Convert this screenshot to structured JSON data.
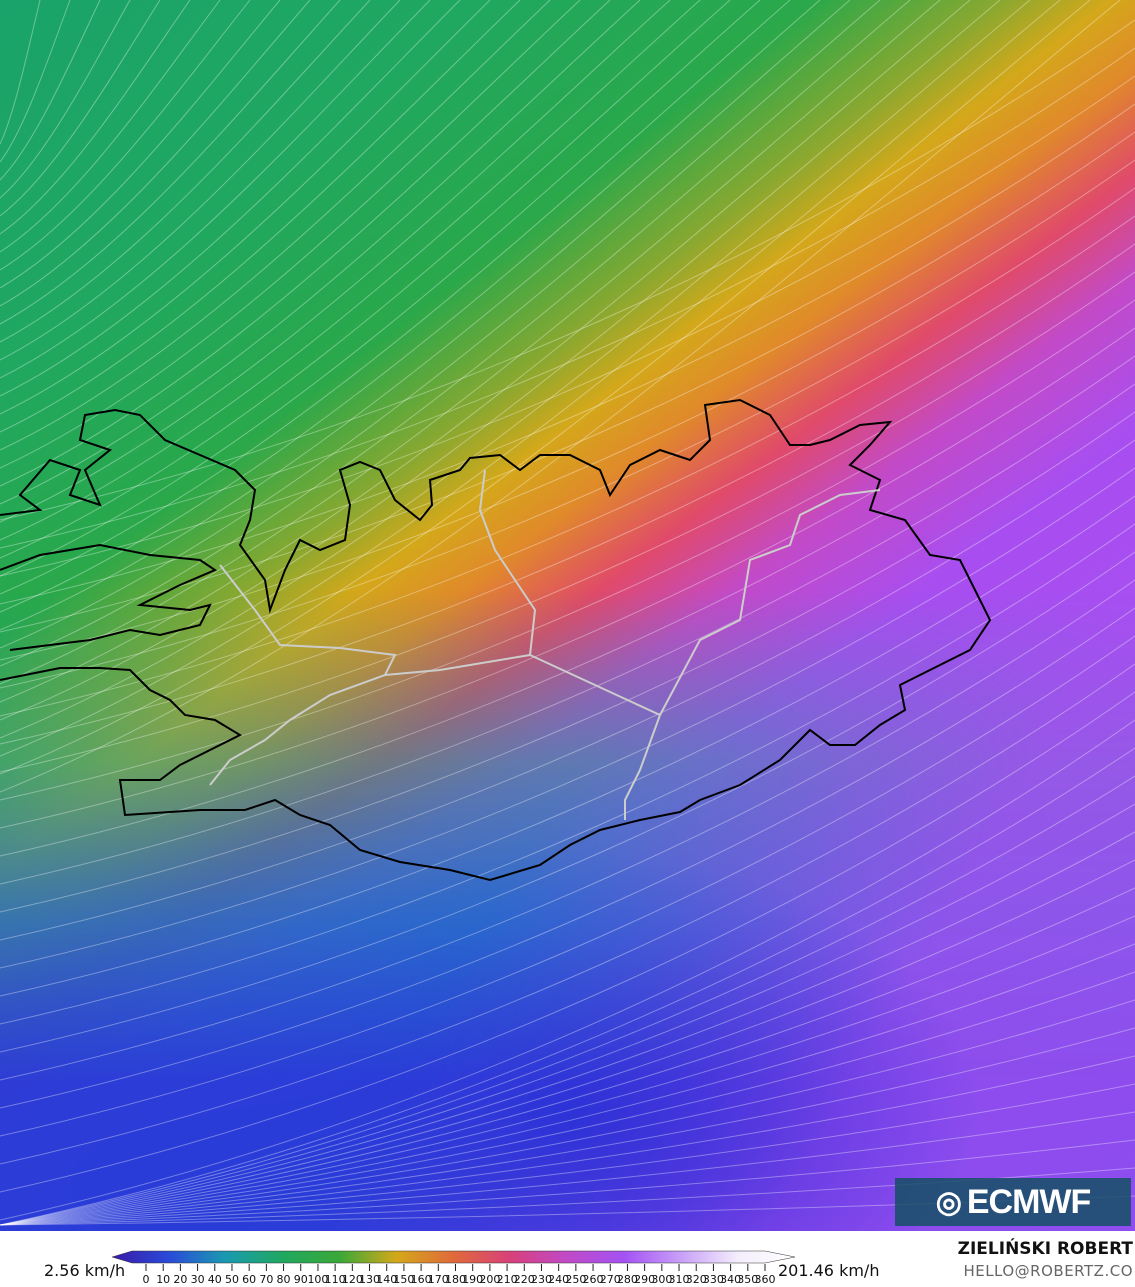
{
  "map": {
    "variable": "wind speed",
    "region": "Iceland",
    "layers": [
      "wind-speed-fill",
      "streamlines",
      "coastline",
      "roads"
    ]
  },
  "colorbar": {
    "min_label": "2.56 km/h",
    "max_label": "201.46 km/h",
    "ticks": [
      "0",
      "10",
      "20",
      "30",
      "40",
      "50",
      "60",
      "70",
      "80",
      "90",
      "100",
      "110",
      "120",
      "130",
      "140",
      "150",
      "160",
      "170",
      "180",
      "190",
      "200",
      "210",
      "220",
      "230",
      "240",
      "250",
      "260",
      "270",
      "280",
      "290",
      "300",
      "310",
      "320",
      "330",
      "340",
      "350",
      "360"
    ],
    "colors": [
      "#3a1aa8",
      "#2a4ad8",
      "#1a9ab0",
      "#20a860",
      "#3aa838",
      "#d4a81a",
      "#e06a3a",
      "#d8407a",
      "#c04ac8",
      "#a452f4",
      "#c8a0f8",
      "#f4eefc",
      "#ffffff"
    ]
  },
  "logo": {
    "text": "ECMWF"
  },
  "credit": {
    "author": "ZIELIŃSKI ROBERT",
    "email": "HELLO@ROBERTZ.CO"
  }
}
